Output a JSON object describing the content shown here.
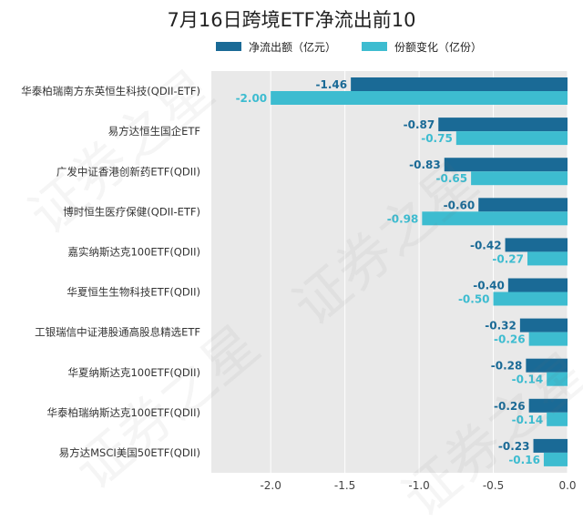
{
  "chart_data": {
    "type": "bar",
    "orientation": "horizontal",
    "title": "7月16日跨境ETF净流出前10",
    "categories": [
      "华泰柏瑞南方东英恒生科技(QDII-ETF)",
      "易方达恒生国企ETF",
      "广发中证香港创新药ETF(QDII)",
      "博时恒生医疗保健(QDII-ETF)",
      "嘉实纳斯达克100ETF(QDII)",
      "华夏恒生生物科技ETF(QDII)",
      "工银瑞信中证港股通高股息精选ETF",
      "华夏纳斯达克100ETF(QDII)",
      "华泰柏瑞纳斯达克100ETF(QDII)",
      "易方达MSCI美国50ETF(QDII)"
    ],
    "series": [
      {
        "name": "净流出额（亿元）",
        "color": "#1a6a96",
        "values": [
          -1.46,
          -0.87,
          -0.83,
          -0.6,
          -0.42,
          -0.4,
          -0.32,
          -0.28,
          -0.26,
          -0.23
        ],
        "labels": [
          "-1.46",
          "-0.87",
          "-0.83",
          "-0.60",
          "-0.42",
          "-0.40",
          "-0.32",
          "-0.28",
          "-0.26",
          "-0.23"
        ]
      },
      {
        "name": "份额变化（亿份）",
        "color": "#3dbcd0",
        "values": [
          -2.0,
          -0.75,
          -0.65,
          -0.98,
          -0.27,
          -0.5,
          -0.26,
          -0.14,
          -0.14,
          -0.16
        ],
        "labels": [
          "-2.00",
          "-0.75",
          "-0.65",
          "-0.98",
          "-0.27",
          "-0.50",
          "-0.26",
          "-0.14",
          "-0.14",
          "-0.16"
        ]
      }
    ],
    "xlim": [
      -2.4,
      0.0
    ],
    "xticks": [
      -2.0,
      -1.5,
      -1.0,
      -0.5,
      0.0
    ],
    "xtick_labels": [
      "-2.0",
      "-1.5",
      "-1.0",
      "-0.5",
      "0.0"
    ],
    "grid": "vertical",
    "legend_position": "top"
  },
  "watermark_text": "证券之星"
}
